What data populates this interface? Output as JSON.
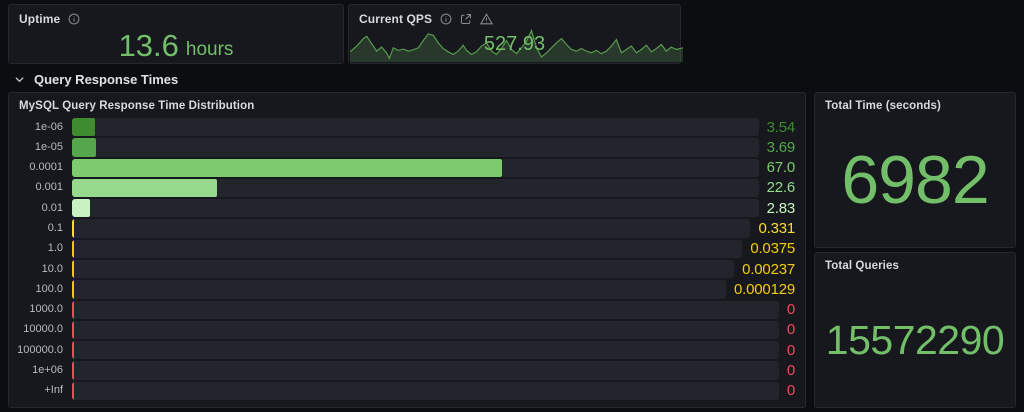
{
  "panels": {
    "uptime": {
      "title": "Uptime",
      "value": "13.6",
      "unit": "hours"
    },
    "qps": {
      "title": "Current QPS",
      "value": "527.93",
      "sparkline": {
        "line_color": "#57994d",
        "fill_color": "rgba(115,191,105,0.20)",
        "points": [
          [
            0,
            28
          ],
          [
            2,
            45
          ],
          [
            4,
            68
          ],
          [
            5,
            75
          ],
          [
            7,
            45
          ],
          [
            8,
            30
          ],
          [
            9.5,
            42
          ],
          [
            11,
            25
          ],
          [
            11.8,
            8
          ],
          [
            13,
            40
          ],
          [
            14.5,
            32
          ],
          [
            16,
            36
          ],
          [
            17.5,
            30
          ],
          [
            19,
            34
          ],
          [
            20.5,
            40
          ],
          [
            22,
            62
          ],
          [
            23.5,
            82
          ],
          [
            25,
            78
          ],
          [
            26.5,
            55
          ],
          [
            28,
            38
          ],
          [
            29.5,
            28
          ],
          [
            31,
            20
          ],
          [
            32.5,
            30
          ],
          [
            34,
            48
          ],
          [
            35,
            32
          ],
          [
            36.5,
            20
          ],
          [
            38,
            28
          ],
          [
            39.5,
            45
          ],
          [
            41,
            55
          ],
          [
            42.5,
            30
          ],
          [
            44,
            20
          ],
          [
            45.5,
            38
          ],
          [
            47,
            62
          ],
          [
            48.5,
            35
          ],
          [
            50,
            22
          ],
          [
            51.5,
            40
          ],
          [
            53,
            60
          ],
          [
            54.5,
            92
          ],
          [
            56,
            40
          ],
          [
            57.5,
            12
          ],
          [
            59,
            25
          ],
          [
            60.5,
            40
          ],
          [
            62,
            55
          ],
          [
            63.5,
            68
          ],
          [
            65,
            50
          ],
          [
            66.5,
            35
          ],
          [
            68,
            30
          ],
          [
            69.5,
            38
          ],
          [
            71,
            30
          ],
          [
            72.5,
            25
          ],
          [
            74,
            32
          ],
          [
            75.5,
            22
          ],
          [
            77,
            30
          ],
          [
            78.5,
            45
          ],
          [
            80,
            65
          ],
          [
            81.5,
            25
          ],
          [
            83,
            35
          ],
          [
            84.5,
            45
          ],
          [
            86,
            25
          ],
          [
            87.5,
            35
          ],
          [
            89,
            48
          ],
          [
            90.5,
            28
          ],
          [
            92,
            38
          ],
          [
            93.5,
            50
          ],
          [
            95,
            30
          ],
          [
            96.5,
            42
          ],
          [
            98,
            35
          ],
          [
            100,
            40
          ]
        ]
      }
    },
    "total_time": {
      "title": "Total Time (seconds)",
      "value": "6982"
    },
    "total_queries": {
      "title": "Total Queries",
      "value": "15572290"
    }
  },
  "section": {
    "label": "Query Response Times"
  },
  "chart_data": {
    "type": "bar",
    "orientation": "horizontal",
    "title": "MySQL Query Response Time Distribution",
    "categories": [
      "1e-06",
      "1e-05",
      "0.0001",
      "0.001",
      "0.01",
      "0.1",
      "1.0",
      "10.0",
      "100.0",
      "1000.0",
      "10000.0",
      "100000.0",
      "1e+06",
      "+Inf"
    ],
    "values": [
      3.54,
      3.69,
      67.0,
      22.6,
      2.83,
      0.331,
      0.0375,
      0.00237,
      0.000129,
      0,
      0,
      0,
      0,
      0
    ],
    "value_labels": [
      "3.54",
      "3.69",
      "67.0",
      "22.6",
      "2.83",
      "0.331",
      "0.0375",
      "0.00237",
      "0.000129",
      "0",
      "0",
      "0",
      "0",
      "0"
    ],
    "bar_colors": [
      "#3f8c30",
      "#56a64b",
      "#7ccb6e",
      "#96d98d",
      "#c8f2c2",
      "#fade2a",
      "#f2cc0c",
      "#f2cc0c",
      "#f2cc0c",
      "#f2495c",
      "#f2495c",
      "#f2495c",
      "#f2495c",
      "#f2495c"
    ],
    "xlabel": "",
    "ylabel": "",
    "xlim": [
      0,
      107
    ],
    "grid": false,
    "legend": "none",
    "track_color": "#22252b"
  },
  "colors": {
    "accent_green": "#73bf69",
    "accent_yellow": "#f2cc0c",
    "accent_red": "#f2495c",
    "panel_bg": "#16181d",
    "page_bg": "#0c0d10"
  }
}
